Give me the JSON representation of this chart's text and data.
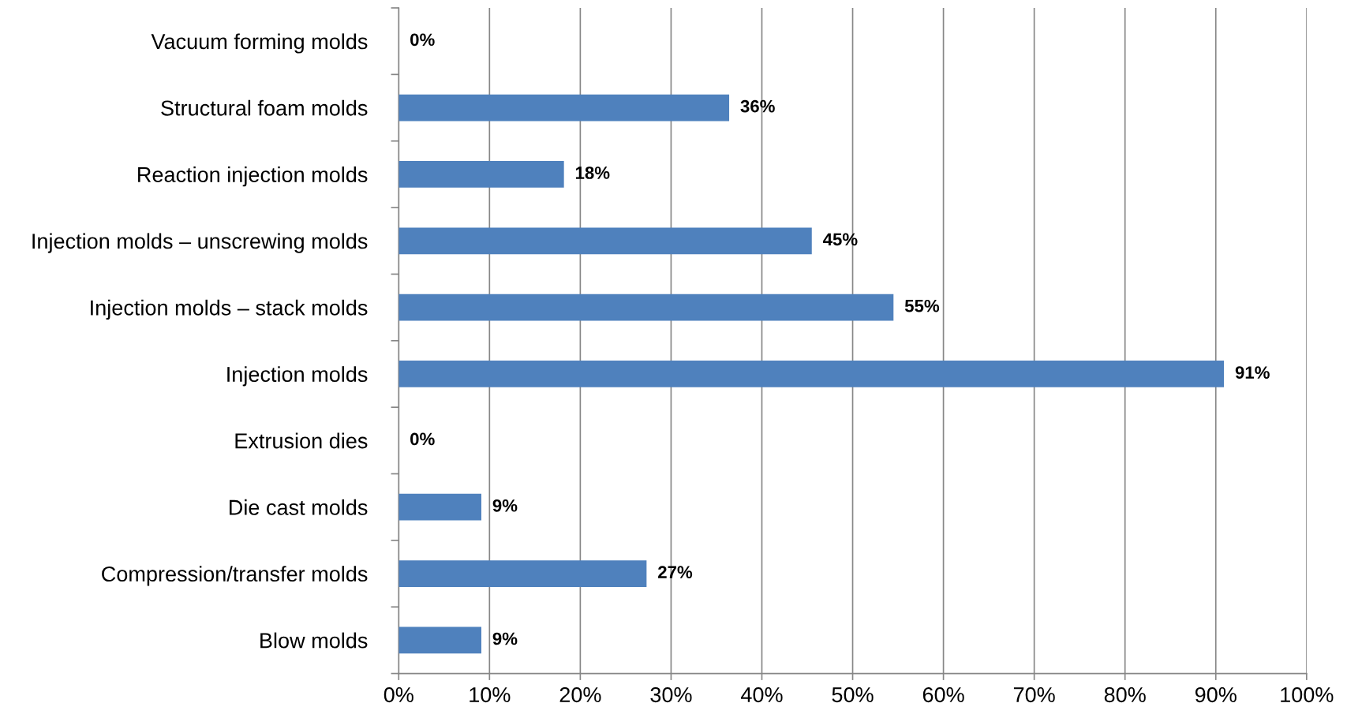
{
  "chart_data": {
    "type": "bar",
    "orientation": "horizontal",
    "categories": [
      "Vacuum forming molds",
      "Structural foam molds",
      "Reaction injection molds",
      "Injection molds – unscrewing molds",
      "Injection molds – stack molds",
      "Injection molds",
      "Extrusion dies",
      "Die cast molds",
      "Compression/transfer molds",
      "Blow molds"
    ],
    "values": [
      0,
      36.4,
      18.2,
      45.5,
      54.5,
      90.9,
      0,
      9.1,
      27.3,
      9.1
    ],
    "value_labels": [
      "0%",
      "36%",
      "18%",
      "45%",
      "55%",
      "91%",
      "0%",
      "9%",
      "27%",
      "9%"
    ],
    "color": "#4f81bd",
    "xlim": [
      0,
      100
    ],
    "xticks": [
      {
        "value": 0,
        "label": "0%"
      },
      {
        "value": 10,
        "label": "10%"
      },
      {
        "value": 20,
        "label": "20%"
      },
      {
        "value": 30,
        "label": "30%"
      },
      {
        "value": 40,
        "label": "40%"
      },
      {
        "value": 50,
        "label": "50%"
      },
      {
        "value": 60,
        "label": "60%"
      },
      {
        "value": 70,
        "label": "70%"
      },
      {
        "value": 80,
        "label": "80%"
      },
      {
        "value": 90,
        "label": "90%"
      },
      {
        "value": 100,
        "label": "100%"
      }
    ],
    "grid": "x"
  }
}
